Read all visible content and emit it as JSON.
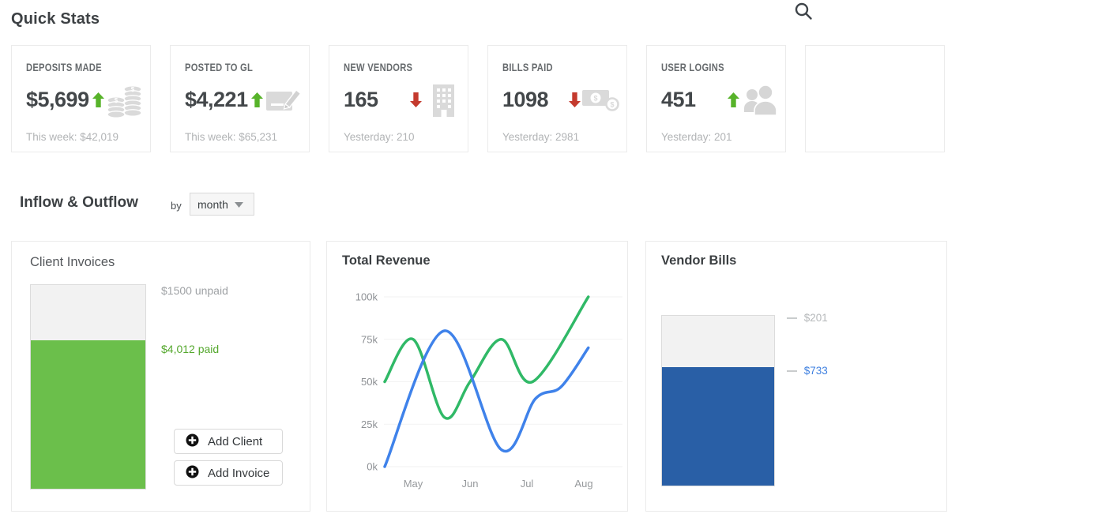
{
  "quick_stats": {
    "title": "Quick Stats",
    "cards": [
      {
        "label": "DEPOSITS MADE",
        "value": "$5,699",
        "trend": "up",
        "trend_icon": "arrow-up",
        "icon": "coin-stacks",
        "footnote": "This week: $42,019"
      },
      {
        "label": "POSTED TO GL",
        "value": "$4,221",
        "trend": "up",
        "trend_icon": "arrow-up",
        "icon": "document-pencil",
        "footnote": "This week: $65,231"
      },
      {
        "label": "NEW VENDORS",
        "value": "165",
        "trend": "down",
        "trend_icon": "arrow-down",
        "icon": "building",
        "footnote": "Yesterday: 210"
      },
      {
        "label": "BILLS PAID",
        "value": "1098",
        "trend": "down",
        "trend_icon": "arrow-down",
        "icon": "banknote-coins",
        "footnote": "Yesterday: 2981"
      },
      {
        "label": "USER LOGINS",
        "value": "451",
        "trend": "up",
        "trend_icon": "arrow-up",
        "icon": "users",
        "footnote": "Yesterday: 201"
      }
    ]
  },
  "header": {
    "search_icon": "search"
  },
  "inflow_outflow": {
    "title": "Inflow & Outflow",
    "by_label": "by",
    "period_value": "month",
    "period_icon": "caret-down"
  },
  "client_invoices_card": {
    "buttons": [
      {
        "icon": "plus-circle",
        "label": "Add Client"
      },
      {
        "icon": "plus-circle",
        "label": "Add Invoice"
      }
    ]
  },
  "colors": {
    "trend_up": "#57b32a",
    "trend_down": "#c43a2e",
    "bar_green": "#6bbf4b",
    "bar_blue": "#295fa6",
    "line_green": "#30b967",
    "line_blue": "#3f82ea"
  },
  "chart_data": [
    {
      "id": "client_invoices",
      "type": "bar",
      "title": "Client Invoices",
      "stacked": true,
      "segments": [
        {
          "name": "unpaid",
          "value": 1500,
          "label": "$1500 unpaid",
          "color": "#f2f2f2",
          "label_color": "#9fa2a5"
        },
        {
          "name": "paid",
          "value": 4012,
          "label": "$4,012 paid",
          "color": "#6bbf4b",
          "label_color": "#55a82e"
        }
      ]
    },
    {
      "id": "total_revenue",
      "type": "line",
      "title": "Total Revenue",
      "x_tick_labels": [
        "May",
        "Jun",
        "Jul",
        "Aug"
      ],
      "x_tick_positions": [
        0,
        1,
        2,
        3
      ],
      "y_ticks": [
        0,
        25,
        50,
        75,
        100
      ],
      "y_tick_labels": [
        "0k",
        "25k",
        "50k",
        "75k",
        "100k"
      ],
      "ylim": [
        0,
        100
      ],
      "xlim": [
        -0.5,
        3.12
      ],
      "grid": true,
      "legend": "none",
      "series": [
        {
          "name": "green-series",
          "color": "#30b967",
          "points": [
            [
              -0.5,
              50
            ],
            [
              0,
              75
            ],
            [
              0.55,
              29
            ],
            [
              1.0,
              50
            ],
            [
              1.55,
              75
            ],
            [
              2.1,
              50
            ],
            [
              3.08,
              100
            ]
          ]
        },
        {
          "name": "blue-series",
          "color": "#3f82ea",
          "points": [
            [
              -0.5,
              0
            ],
            [
              0.55,
              80
            ],
            [
              1.55,
              10
            ],
            [
              2.15,
              40
            ],
            [
              2.6,
              47
            ],
            [
              3.08,
              70
            ]
          ]
        }
      ]
    },
    {
      "id": "vendor_bills",
      "type": "bar",
      "title": "Vendor Bills",
      "stacked": true,
      "segments": [
        {
          "name": "unpaid",
          "label": "$201",
          "label_cut_off": true,
          "height_pct": 30,
          "color": "#f2f2f2",
          "label_color": "#b5b8ba"
        },
        {
          "name": "paid",
          "label": "$733",
          "label_cut_off": true,
          "height_pct": 70,
          "color": "#295fa6",
          "label_color": "#3f80e0"
        }
      ]
    }
  ]
}
